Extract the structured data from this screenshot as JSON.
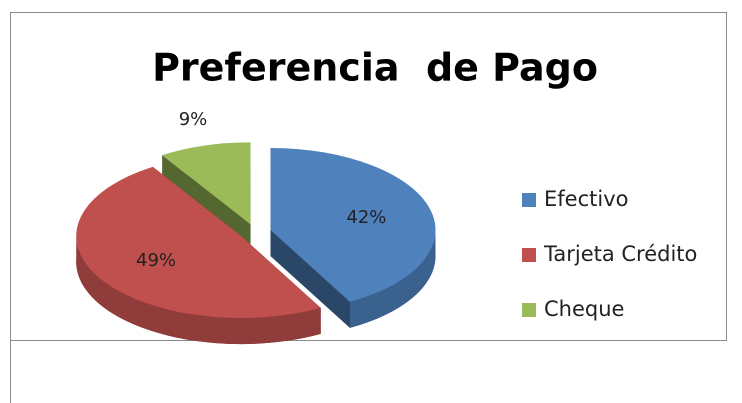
{
  "chart_data": {
    "type": "pie3d",
    "title": "Preferencia  de Pago",
    "categories": [
      "Efectivo",
      "Tarjeta Crédito",
      "Cheque"
    ],
    "values": [
      42,
      49,
      9
    ],
    "value_labels": [
      "42%",
      "49%",
      "9%"
    ],
    "colors": [
      "#4f81bd",
      "#c0504d",
      "#9bbb59"
    ],
    "legend": "right"
  }
}
